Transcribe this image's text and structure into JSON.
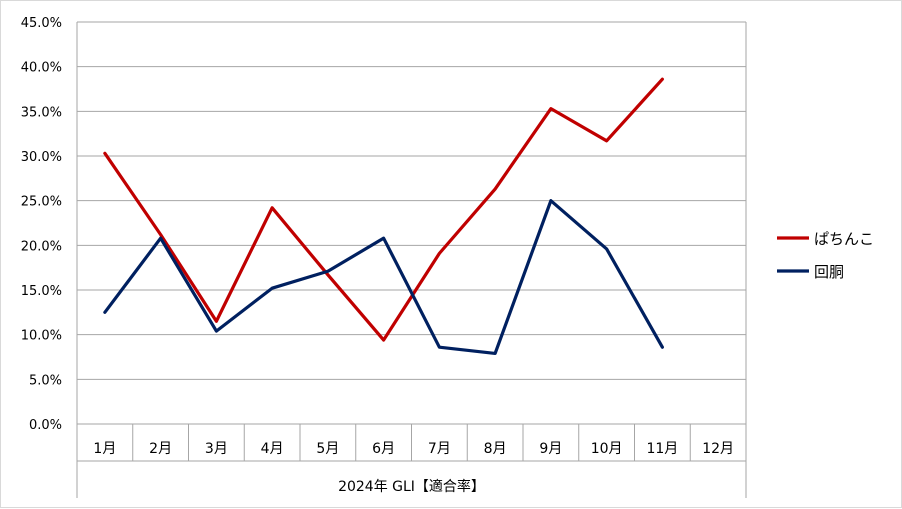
{
  "chart_data": {
    "type": "line",
    "title": "",
    "xlabel": "2024年 GLI【適合率】",
    "ylabel": "",
    "categories": [
      "1月",
      "2月",
      "3月",
      "4月",
      "5月",
      "6月",
      "7月",
      "8月",
      "9月",
      "10月",
      "11月",
      "12月"
    ],
    "y_ticks": [
      "0.0%",
      "5.0%",
      "10.0%",
      "15.0%",
      "20.0%",
      "25.0%",
      "30.0%",
      "35.0%",
      "40.0%",
      "45.0%"
    ],
    "ylim": [
      0,
      45
    ],
    "y_unit": "%",
    "grid": true,
    "legend_position": "right",
    "series": [
      {
        "name": "ぱちんこ",
        "color": "#c00000",
        "values": [
          30.3,
          21.2,
          11.5,
          24.2,
          16.7,
          9.4,
          19.1,
          26.3,
          35.3,
          31.7,
          38.6,
          null
        ]
      },
      {
        "name": "回胴",
        "color": "#002060",
        "values": [
          12.5,
          20.8,
          10.4,
          15.2,
          17.1,
          20.8,
          8.6,
          7.9,
          25.0,
          19.6,
          8.6,
          null
        ]
      }
    ]
  }
}
